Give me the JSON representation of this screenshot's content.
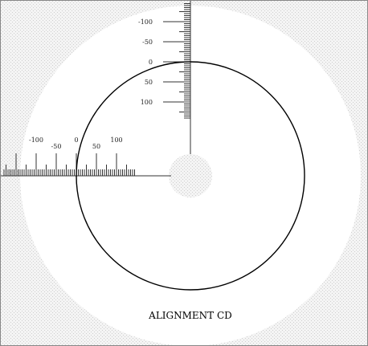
{
  "disc": {
    "label": "ALIGNMENT CD",
    "pattern_color": "#d6d6d6",
    "line_color": "#000000",
    "ruler_color": "#333333"
  },
  "vertical_ruler": {
    "labels": [
      {
        "text": "-100",
        "value": -100
      },
      {
        "text": "-50",
        "value": -50
      },
      {
        "text": "0",
        "value": 0
      },
      {
        "text": "50",
        "value": 50
      },
      {
        "text": "100",
        "value": 100
      }
    ]
  },
  "horizontal_ruler": {
    "labels": [
      {
        "text": "-100",
        "value": -100
      },
      {
        "text": "-50",
        "value": -50
      },
      {
        "text": "0",
        "value": 0
      },
      {
        "text": "50",
        "value": 50
      },
      {
        "text": "100",
        "value": 100
      }
    ]
  }
}
